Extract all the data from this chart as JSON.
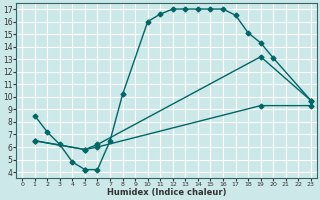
{
  "title": "",
  "xlabel": "Humidex (Indice chaleur)",
  "bg_color": "#cce8e8",
  "grid_color": "#ffffff",
  "line_color": "#006666",
  "xlim": [
    -0.5,
    23.5
  ],
  "ylim": [
    3.5,
    17.5
  ],
  "xticks": [
    0,
    1,
    2,
    3,
    4,
    5,
    6,
    7,
    8,
    9,
    10,
    11,
    12,
    13,
    14,
    15,
    16,
    17,
    18,
    19,
    20,
    21,
    22,
    23
  ],
  "yticks": [
    4,
    5,
    6,
    7,
    8,
    9,
    10,
    11,
    12,
    13,
    14,
    15,
    16,
    17
  ],
  "line1_x": [
    1,
    2,
    3,
    4,
    5,
    5,
    6,
    7,
    8,
    10,
    11,
    12,
    13,
    14,
    15,
    16,
    17,
    18,
    19,
    20,
    23
  ],
  "line1_y": [
    8.5,
    7.2,
    6.2,
    4.8,
    4.2,
    4.2,
    4.2,
    6.5,
    10.2,
    16.0,
    16.6,
    17.0,
    17.0,
    17.0,
    17.0,
    17.0,
    16.5,
    15.1,
    14.3,
    13.1,
    9.7
  ],
  "line2_x": [
    1,
    5,
    6,
    19,
    23
  ],
  "line2_y": [
    6.5,
    5.8,
    6.2,
    13.2,
    9.7
  ],
  "line3_x": [
    1,
    5,
    6,
    19,
    23
  ],
  "line3_y": [
    6.5,
    5.8,
    6.0,
    9.3,
    9.3
  ],
  "spine_color": "#336666",
  "tick_color": "#333333",
  "xlabel_fontsize": 6,
  "tick_fontsize_x": 4.5,
  "tick_fontsize_y": 5.5
}
